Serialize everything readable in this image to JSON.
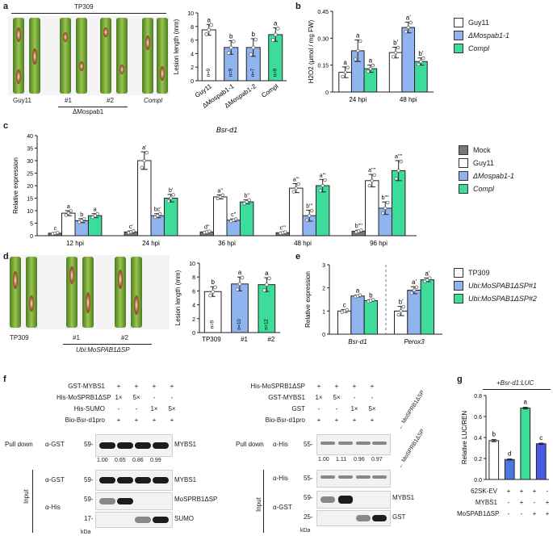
{
  "figure": {
    "panel_labels": [
      "a",
      "b",
      "c",
      "d",
      "e",
      "f",
      "g"
    ],
    "a": {
      "photo_header": "TP309",
      "leaf_labels": [
        "Guy11",
        "#1",
        "#2",
        "Compl"
      ],
      "group_label": "ΔMospab1",
      "chart_data": {
        "type": "bar",
        "ylabel": "Lesion length (mm)",
        "ylim": [
          0,
          10
        ],
        "yticks": [
          "0",
          "2",
          "4",
          "6",
          "8",
          "10"
        ],
        "categories": [
          "Guy11",
          "ΔMospab1-1",
          "ΔMospab1-2",
          "Compl"
        ],
        "values": [
          7.5,
          4.9,
          4.9,
          6.8
        ],
        "errors": [
          0.8,
          1.0,
          1.3,
          1.0
        ],
        "letters": [
          "a",
          "b",
          "b",
          "a"
        ],
        "n": [
          "n=9",
          "n=9",
          "n=7",
          "n=9"
        ],
        "colors": [
          "#ffffff",
          "#8fb4f0",
          "#8fb4f0",
          "#3ddc9a"
        ]
      }
    },
    "b": {
      "chart_data": {
        "type": "bar",
        "ylabel": "H2O2 (μmol / mg FW)",
        "ylim": [
          0,
          0.45
        ],
        "yticks": [
          "0",
          "0.15",
          "0.30",
          "0.45"
        ],
        "categories": [
          "24 hpi",
          "48 hpi"
        ],
        "series": [
          {
            "name": "Guy11",
            "values": [
              0.11,
              0.22
            ],
            "errors": [
              0.03,
              0.03
            ],
            "letters": [
              "a",
              "b'"
            ],
            "color": "#ffffff"
          },
          {
            "name": "ΔMospab1-1",
            "values": [
              0.23,
              0.36
            ],
            "errors": [
              0.06,
              0.03
            ],
            "letters": [
              "a",
              "a'"
            ],
            "color": "#8fb4f0"
          },
          {
            "name": "Compl",
            "values": [
              0.13,
              0.17
            ],
            "errors": [
              0.02,
              0.02
            ],
            "letters": [
              "a",
              "b'"
            ],
            "color": "#3ddc9a"
          }
        ]
      }
    },
    "c": {
      "chart_data": {
        "type": "bar",
        "title": "Bsr-d1",
        "ylabel": "Relative expression",
        "ylim": [
          0,
          40
        ],
        "yticks": [
          "0",
          "5",
          "10",
          "15",
          "20",
          "25",
          "30",
          "35",
          "40"
        ],
        "categories": [
          "12 hpi",
          "24 hpi",
          "36 hpi",
          "48 hpi",
          "96 hpi"
        ],
        "series": [
          {
            "name": "Mock",
            "values": [
              1.0,
              1.5,
              1.5,
              1.2,
              1.8
            ],
            "errors": [
              0.3,
              0.4,
              0.3,
              0.3,
              0.4
            ],
            "letters": [
              "c",
              "c'",
              "d''",
              "c'''",
              "b''''"
            ],
            "color": "#777777"
          },
          {
            "name": "Guy11",
            "values": [
              9.0,
              30.0,
              15.5,
              19.0,
              22.0
            ],
            "errors": [
              1.0,
              3.5,
              0.8,
              1.8,
              2.5
            ],
            "letters": [
              "a",
              "a'",
              "a''",
              "a'''",
              "a''''"
            ],
            "color": "#ffffff"
          },
          {
            "name": "ΔMospab1-1",
            "values": [
              6.0,
              8.0,
              6.2,
              8.0,
              11.0
            ],
            "errors": [
              0.8,
              0.8,
              0.5,
              2.2,
              2.5
            ],
            "letters": [
              "b",
              "bc'",
              "c''",
              "b'''",
              "b''''"
            ],
            "color": "#8fb4f0"
          },
          {
            "name": "Compl",
            "values": [
              8.0,
              15.0,
              13.5,
              20.0,
              26.0
            ],
            "errors": [
              0.8,
              1.5,
              0.8,
              2.5,
              4.0
            ],
            "letters": [
              "a",
              "b'",
              "b''",
              "a'''",
              "a''''"
            ],
            "color": "#3ddc9a"
          }
        ]
      }
    },
    "d": {
      "leaf_labels": [
        "TP309",
        "#1",
        "#2"
      ],
      "group_label": "Ubi:MoSPAB1ΔSP",
      "chart_data": {
        "type": "bar",
        "ylabel": "Lesion length (mm)",
        "ylim": [
          0,
          10
        ],
        "yticks": [
          "0",
          "2",
          "4",
          "6",
          "8",
          "10"
        ],
        "categories": [
          "TP309",
          "#1",
          "#2"
        ],
        "group_label": "Ubi:MoSPAB1ΔSP",
        "values": [
          5.9,
          7.0,
          6.9
        ],
        "errors": [
          0.7,
          1.0,
          1.0
        ],
        "letters": [
          "b",
          "a",
          "a"
        ],
        "n": [
          "n=9",
          "n=10",
          "n=12"
        ],
        "colors": [
          "#ffffff",
          "#8fb4f0",
          "#3ddc9a"
        ]
      }
    },
    "e": {
      "chart_data": {
        "type": "bar",
        "ylabel": "Relative expression",
        "ylim": [
          0,
          3
        ],
        "yticks": [
          "0",
          "1",
          "2",
          "3"
        ],
        "categories": [
          "Bsr-d1",
          "Perox3"
        ],
        "series": [
          {
            "name": "TP309",
            "values": [
              1.0,
              1.0
            ],
            "errors": [
              0.06,
              0.2
            ],
            "letters": [
              "c",
              "b'"
            ],
            "color": "#ffffff"
          },
          {
            "name": "Ubi:MoSPAB1ΔSP#1",
            "values": [
              1.65,
              1.9
            ],
            "errors": [
              0.04,
              0.15
            ],
            "letters": [
              "a",
              "a'"
            ],
            "color": "#8fb4f0"
          },
          {
            "name": "Ubi:MoSPAB1ΔSP#2",
            "values": [
              1.45,
              2.35
            ],
            "errors": [
              0.04,
              0.08
            ],
            "letters": [
              "b",
              "a'"
            ],
            "color": "#3ddc9a"
          }
        ]
      }
    },
    "f_left": {
      "rows": [
        {
          "label": "GST-MYBS1",
          "vals": [
            "+",
            "+",
            "+",
            "+"
          ]
        },
        {
          "label": "His-MoSPRB1ΔSP",
          "vals": [
            "1×",
            "5×",
            "-",
            "-"
          ]
        },
        {
          "label": "His-SUMO",
          "vals": [
            "-",
            "-",
            "1×",
            "5×"
          ]
        },
        {
          "label": "Bio-Bsr-d1pro",
          "vals": [
            "+",
            "+",
            "+",
            "+"
          ]
        }
      ],
      "pulldown_label": "Pull down",
      "pd_antibody": "α-GST",
      "pd_marker": "59-",
      "pd_protein": "MYBS1",
      "ratios": [
        "1.00",
        "0.65",
        "0.86",
        "0.99"
      ],
      "input_label": "Input",
      "in_gst": "α-GST",
      "in_his": "α-His",
      "in_m1": "59-",
      "in_m2": "59-",
      "in_m3": "17-",
      "in_p1": "MYBS1",
      "in_p2": "MoSPRB1ΔSP",
      "in_p3": "SUMO",
      "kda": "kDa"
    },
    "f_right": {
      "rows": [
        {
          "label": "His-MoSPRB1ΔSP",
          "vals": [
            "+",
            "+",
            "+",
            "+"
          ]
        },
        {
          "label": "GST-MYBS1",
          "vals": [
            "1×",
            "5×",
            "-",
            "-"
          ]
        },
        {
          "label": "GST",
          "vals": [
            "-",
            "-",
            "1×",
            "5×"
          ]
        },
        {
          "label": "Bio-Bsr-d1pro",
          "vals": [
            "+",
            "+",
            "+",
            "+"
          ]
        }
      ],
      "pulldown_label": "Pull down",
      "pd_antibody": "α-His",
      "pd_marker": "55-",
      "ratios": [
        "1.00",
        "1.11",
        "0.96",
        "0.97"
      ],
      "arrow_label_1": "MoSPRB1ΔSP",
      "arrow_label_2": "MoSPRB1ΔSP",
      "input_label": "Input",
      "in_his": "α-His",
      "in_gst": "α-GST",
      "in_m1": "55-",
      "in_m2": "59-",
      "in_m3": "25-",
      "in_p2": "MYBS1",
      "in_p3": "GST",
      "kda": "kDa"
    },
    "g": {
      "header": "+Bsr-d1:LUC",
      "chart_data": {
        "type": "bar",
        "ylabel": "Relative LUC/REN",
        "ylim": [
          0,
          0.8
        ],
        "yticks": [
          "0.0",
          "0.2",
          "0.4",
          "0.6",
          "0.8"
        ],
        "values": [
          0.37,
          0.19,
          0.68,
          0.34
        ],
        "errors": [
          0.01,
          0.005,
          0.008,
          0.006
        ],
        "letters": [
          "b",
          "d",
          "a",
          "c"
        ],
        "colors": [
          "#ffffff",
          "#4a78e0",
          "#3ddc9a",
          "#4a5ae8"
        ]
      },
      "table": [
        {
          "label": "62SK-EV",
          "vals": [
            "+",
            "+",
            "+",
            "-"
          ]
        },
        {
          "label": "MYBS1",
          "vals": [
            "-",
            "+",
            "-",
            "+"
          ]
        },
        {
          "label": "MoSPAB1ΔSP",
          "vals": [
            "-",
            "-",
            "+",
            "+"
          ]
        }
      ]
    }
  }
}
